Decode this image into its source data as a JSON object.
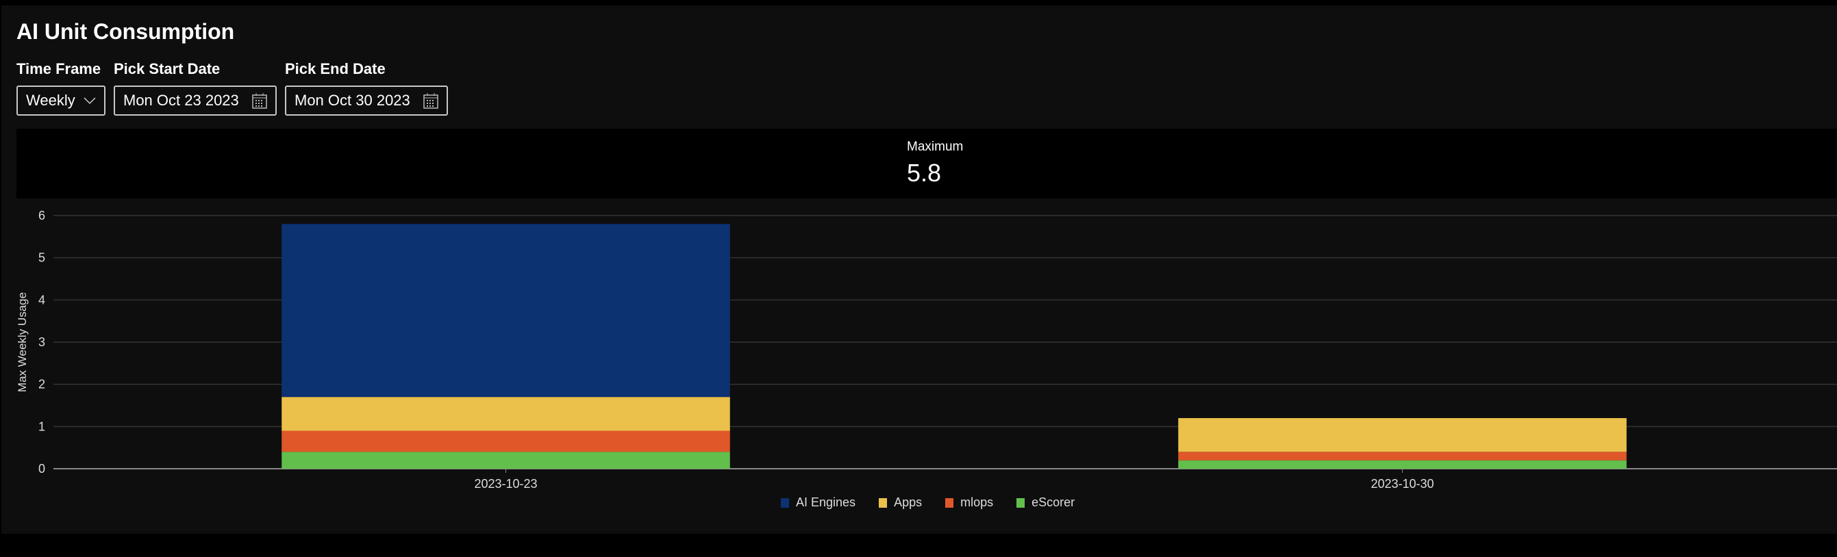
{
  "header": {
    "title": "AI Unit Consumption"
  },
  "controls": {
    "time_frame": {
      "label": "Time Frame",
      "value": "Weekly"
    },
    "start_date": {
      "label": "Pick Start Date",
      "value": "Mon Oct 23 2023"
    },
    "end_date": {
      "label": "Pick End Date",
      "value": "Mon Oct 30 2023"
    }
  },
  "stat": {
    "label": "Maximum",
    "value": "5.8"
  },
  "chart_data": {
    "type": "bar",
    "stacked": true,
    "title": "",
    "xlabel": "",
    "ylabel": "Max Weekly Usage",
    "ylim": [
      0,
      6
    ],
    "yticks": [
      "0",
      "1",
      "2",
      "3",
      "4",
      "5",
      "6"
    ],
    "categories": [
      "2023-10-23",
      "2023-10-30"
    ],
    "series": [
      {
        "name": "eScorer",
        "color": "#62bf4b",
        "values": [
          0.4,
          0.2
        ]
      },
      {
        "name": "mlops",
        "color": "#e0582a",
        "values": [
          0.5,
          0.2
        ]
      },
      {
        "name": "Apps",
        "color": "#ebc14c",
        "values": [
          0.8,
          0.8
        ]
      },
      {
        "name": "AI Engines",
        "color": "#0c3272",
        "values": [
          4.1,
          0
        ]
      }
    ],
    "legend_order": [
      "AI Engines",
      "Apps",
      "mlops",
      "eScorer"
    ],
    "legend": "bottom",
    "grid": true
  }
}
